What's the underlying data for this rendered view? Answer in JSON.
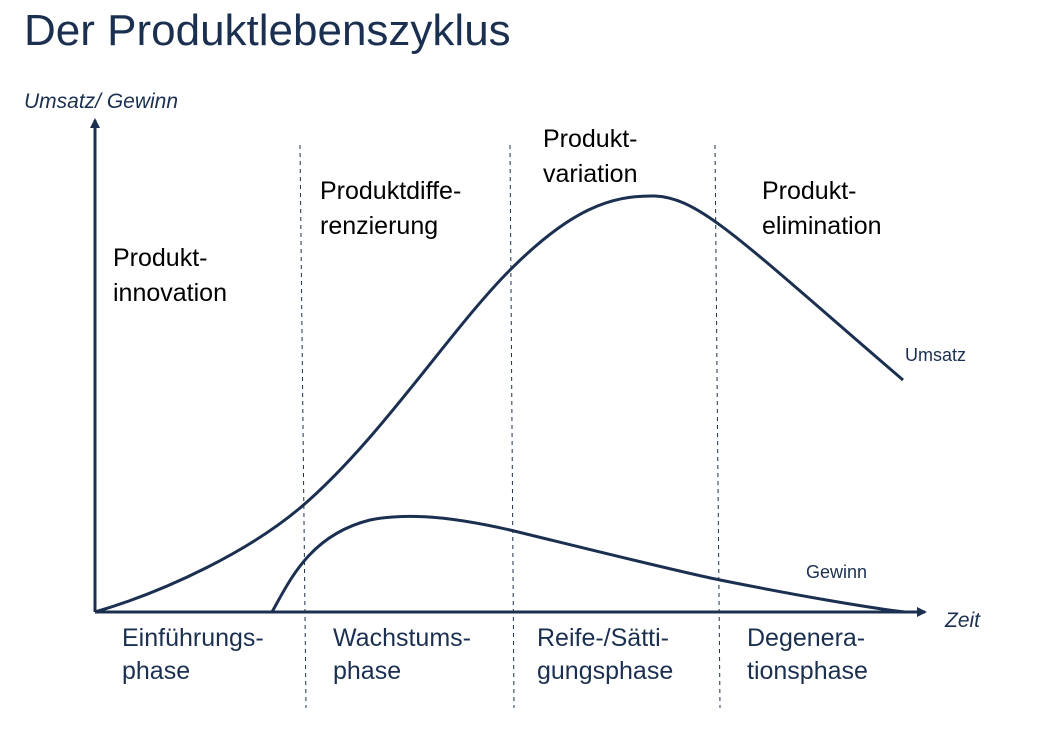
{
  "title": "Der Produktlebenszyklus",
  "y_axis_label": "Umsatz/ Gewinn",
  "x_axis_label": "Zeit",
  "curves": [
    {
      "label": "Umsatz"
    },
    {
      "label": "Gewinn"
    }
  ],
  "phases": [
    {
      "lines": [
        "Einführungs-",
        "phase"
      ],
      "strategy": [
        "Produkt-",
        "innovation"
      ]
    },
    {
      "lines": [
        "Wachstums-",
        "phase"
      ],
      "strategy": [
        "Produktdiffe-",
        "renzierung"
      ]
    },
    {
      "lines": [
        "Reife-/Sätti-",
        "gungsphase"
      ],
      "strategy": [
        "Produkt-",
        "variation"
      ]
    },
    {
      "lines": [
        "Degenera-",
        "tionsphase"
      ],
      "strategy": [
        "Produkt-",
        "elimination"
      ]
    }
  ]
}
